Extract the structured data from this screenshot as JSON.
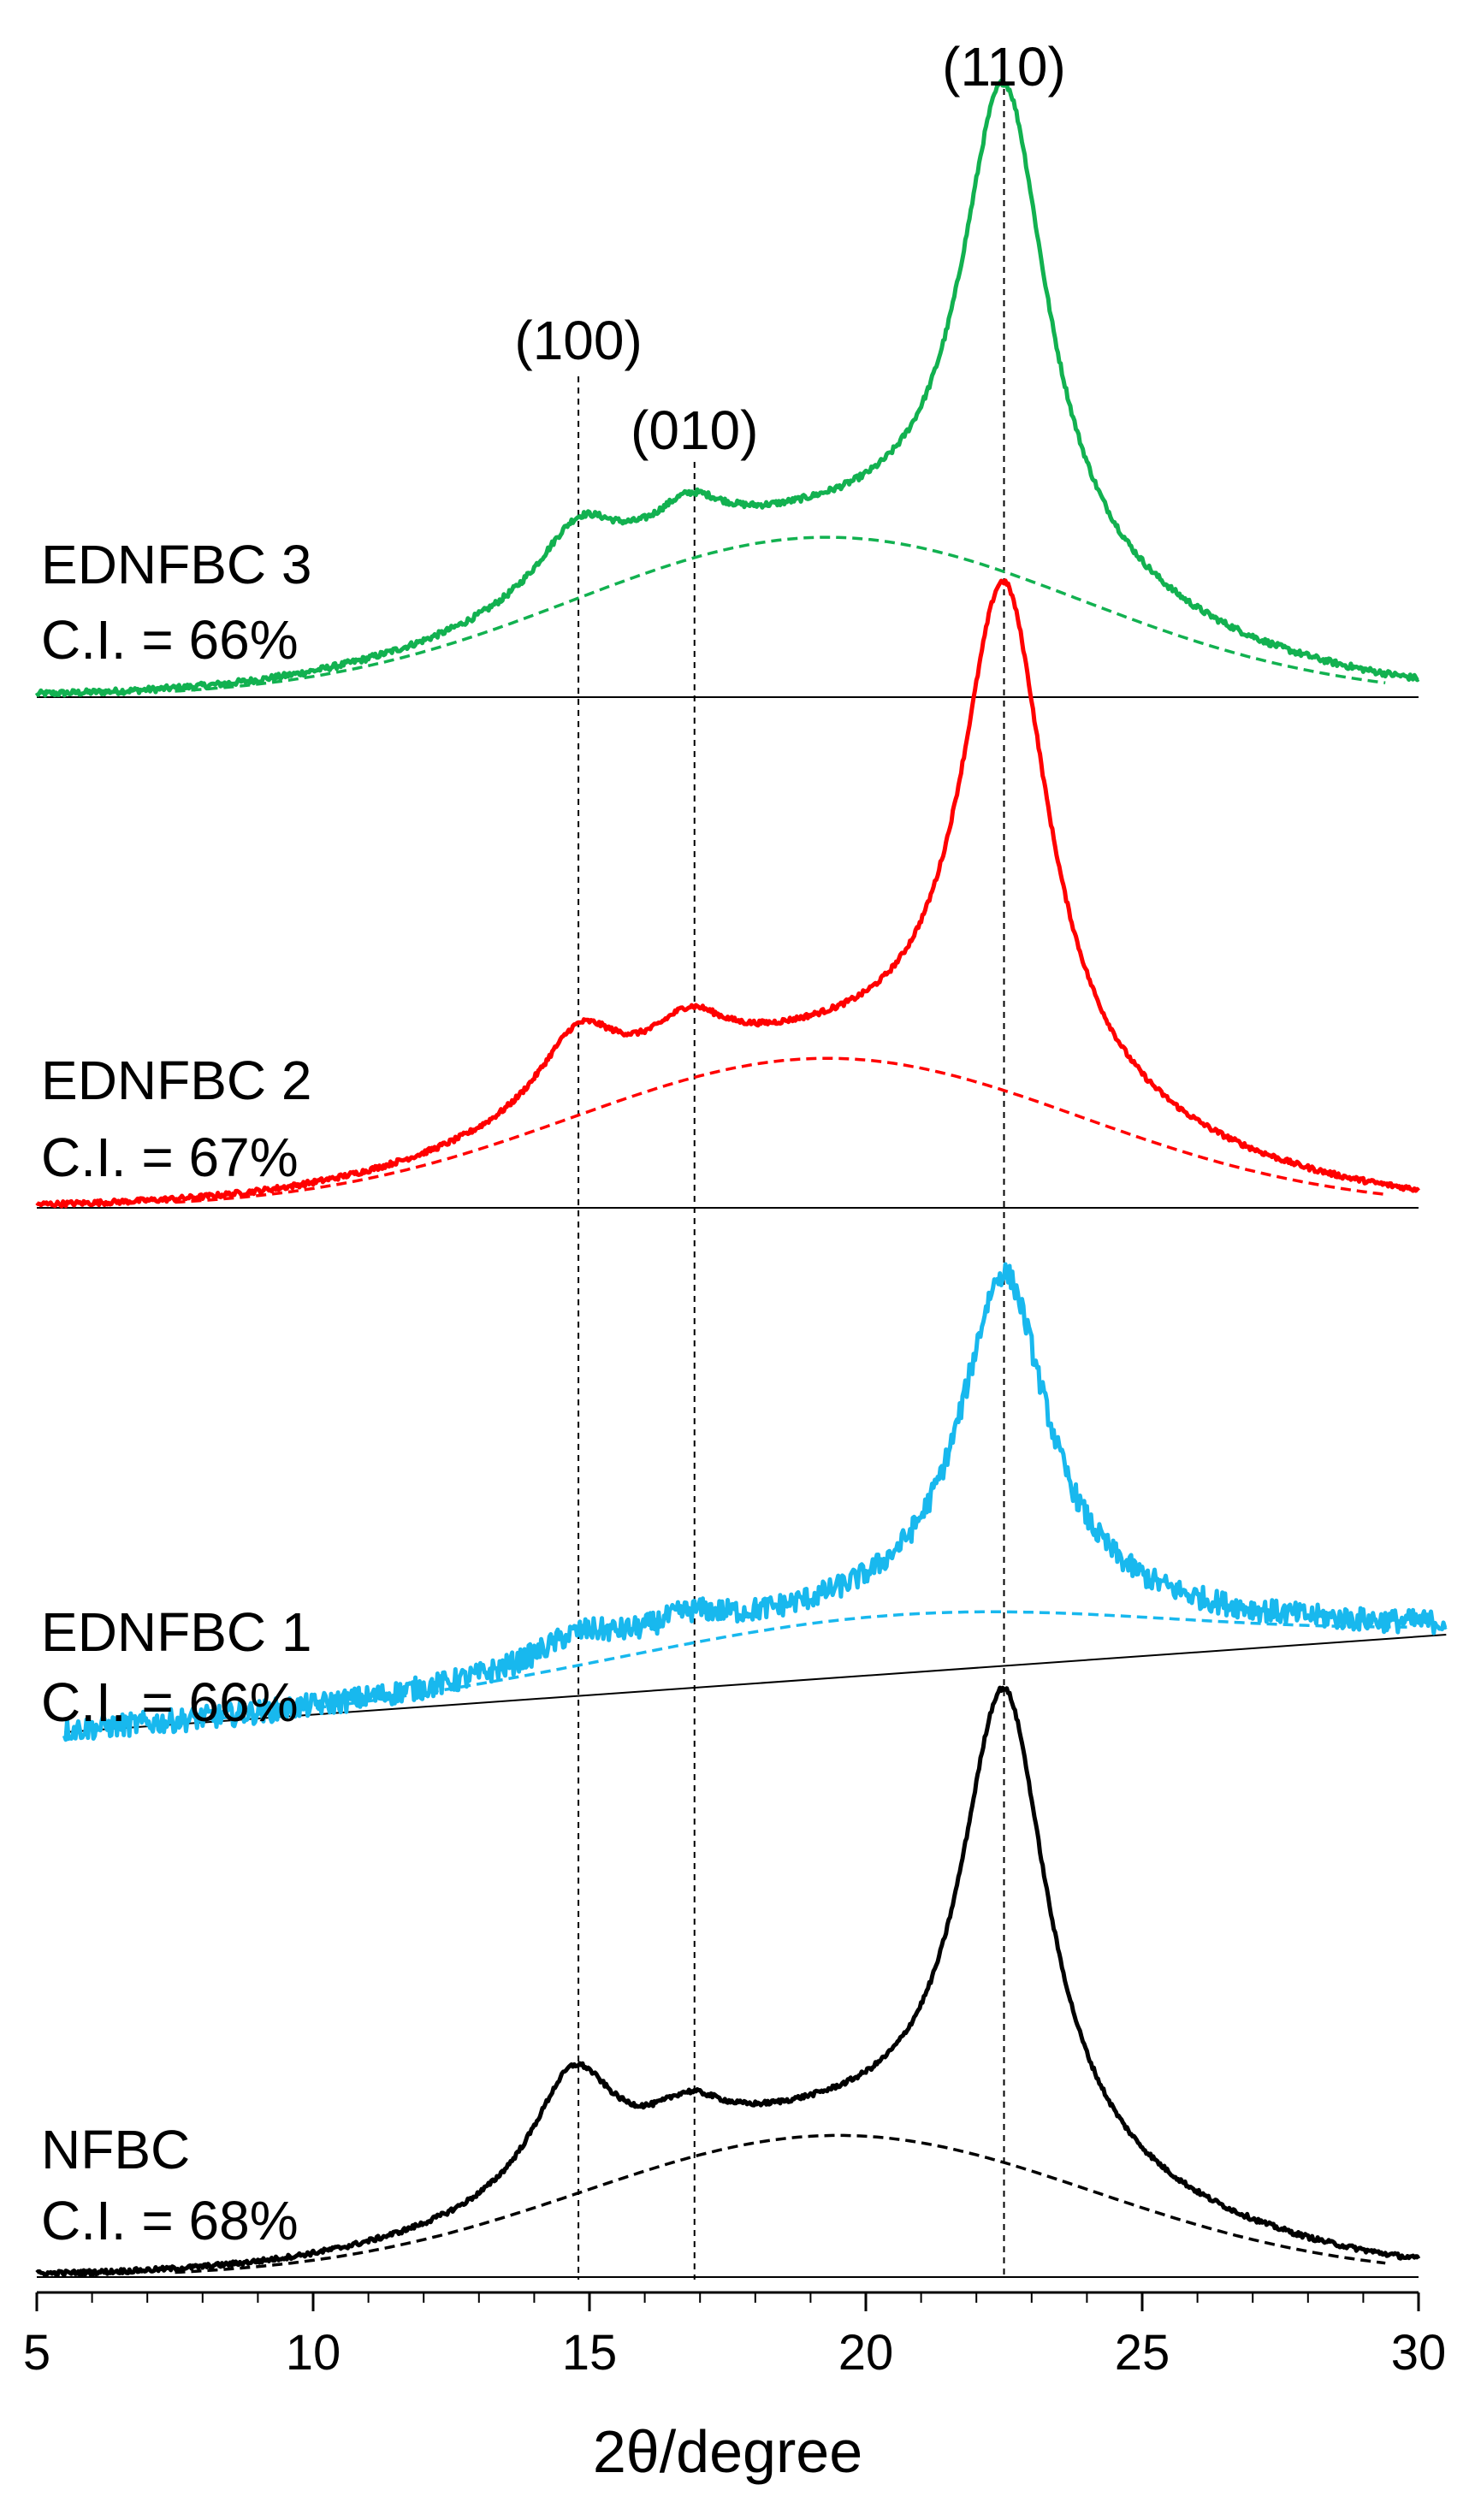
{
  "chart_data": {
    "type": "line",
    "title": "",
    "xlabel": "2θ/degree",
    "ylabel": "",
    "xlim": [
      5,
      30
    ],
    "xticks": [
      5,
      10,
      15,
      20,
      25,
      30
    ],
    "grid": false,
    "reference_lines": [
      {
        "label": "(100)",
        "x": 14.8
      },
      {
        "label": "(010)",
        "x": 16.9
      },
      {
        "label": "(110)",
        "x": 22.5
      }
    ],
    "series": [
      {
        "name": "EDNFBC 3",
        "ci_label": "C.I. = 66%",
        "color": "#12b150",
        "noise": 0.004,
        "x_range": [
          5,
          30
        ],
        "baseline_left": 0,
        "baseline_right": 0,
        "peaks": [
          {
            "center": 14.8,
            "height": 0.09,
            "width": 0.9
          },
          {
            "center": 16.8,
            "height": 0.055,
            "width": 0.8
          },
          {
            "center": 22.5,
            "height": 0.64,
            "width": 0.95
          }
        ],
        "amorphous": {
          "center": 19.3,
          "height": 0.21,
          "width": 4.6
        }
      },
      {
        "name": "EDNFBC 2",
        "ci_label": "C.I. = 67%",
        "color": "#ff0000",
        "noise": 0.004,
        "x_range": [
          5,
          30
        ],
        "baseline_left": 0,
        "baseline_right": 0,
        "peaks": [
          {
            "center": 14.8,
            "height": 0.12,
            "width": 0.9
          },
          {
            "center": 16.8,
            "height": 0.07,
            "width": 0.8
          },
          {
            "center": 22.5,
            "height": 0.78,
            "width": 0.95
          }
        ],
        "amorphous": {
          "center": 19.3,
          "height": 0.23,
          "width": 4.6
        }
      },
      {
        "name": "EDNFBC 1",
        "ci_label": "C.I. = 66%",
        "color": "#18b8ee",
        "noise": 0.018,
        "x_range": [
          5.5,
          30.5
        ],
        "baseline_left": 0,
        "baseline_right": 0.15,
        "peaks": [
          {
            "center": 14.8,
            "height": 0.04,
            "width": 0.9
          },
          {
            "center": 16.8,
            "height": 0.03,
            "width": 0.8
          },
          {
            "center": 22.5,
            "height": 0.52,
            "width": 0.95
          }
        ],
        "amorphous": {
          "center": 20.5,
          "height": 0.09,
          "width": 5.0
        }
      },
      {
        "name": "NFBC",
        "ci_label": "C.I. = 68%",
        "color": "#000000",
        "noise": 0.004,
        "x_range": [
          5,
          30
        ],
        "baseline_left": 0,
        "baseline_right": 0,
        "peaks": [
          {
            "center": 14.7,
            "height": 0.2,
            "width": 0.9
          },
          {
            "center": 16.8,
            "height": 0.06,
            "width": 0.8
          },
          {
            "center": 22.5,
            "height": 0.8,
            "width": 0.95
          }
        ],
        "amorphous": {
          "center": 19.5,
          "height": 0.24,
          "width": 4.6
        }
      }
    ]
  }
}
